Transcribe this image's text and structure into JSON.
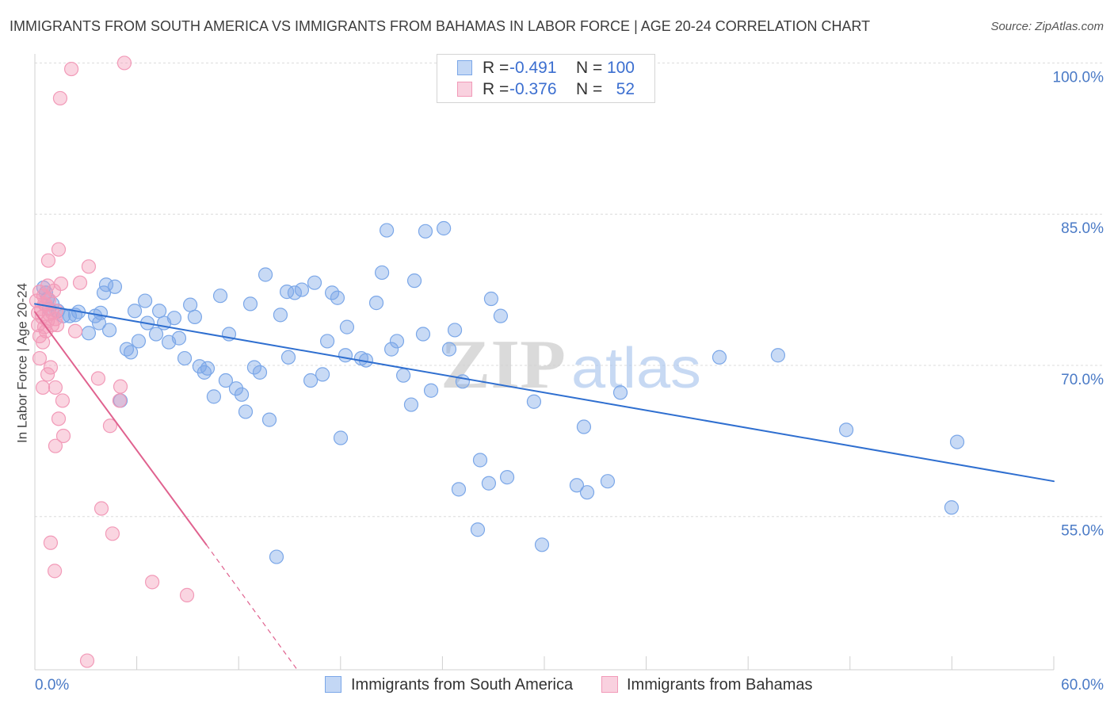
{
  "chart_data": {
    "type": "scatter",
    "title": "IMMIGRANTS FROM SOUTH AMERICA VS IMMIGRANTS FROM BAHAMAS IN LABOR FORCE | AGE 20-24 CORRELATION CHART",
    "source": "Source: ZipAtlas.com",
    "xlabel": "",
    "ylabel": "In Labor Force | Age 20-24",
    "xlim": [
      0,
      60
    ],
    "ylim": [
      39.8,
      100.9
    ],
    "grid": true,
    "x_ticks": [
      {
        "value": 0,
        "label": "0.0%"
      },
      {
        "value": 60,
        "label": "60.0%"
      }
    ],
    "x_tick_marks": [
      0,
      6,
      12,
      18,
      24,
      30,
      36,
      42,
      48,
      54,
      60
    ],
    "y_ticks": [
      {
        "value": 100,
        "label": "100.0%"
      },
      {
        "value": 85,
        "label": "85.0%"
      },
      {
        "value": 70,
        "label": "70.0%"
      },
      {
        "value": 55,
        "label": "55.0%"
      }
    ],
    "stats_legend": {
      "r_label": "R =",
      "n_label": "N ="
    },
    "series": [
      {
        "name": "Immigrants from South America",
        "r": "-0.491",
        "n": "100",
        "color": "#7ba7e8",
        "line_color": "#2f6fd0",
        "trend": {
          "start": [
            0,
            76.1
          ],
          "end": [
            60,
            58.5
          ]
        },
        "points": [
          [
            4.2,
            78.0
          ],
          [
            4.71,
            77.8
          ],
          [
            4.06,
            77.2
          ],
          [
            6.49,
            76.4
          ],
          [
            5.88,
            75.4
          ],
          [
            7.33,
            75.4
          ],
          [
            9.15,
            76.0
          ],
          [
            10.92,
            76.9
          ],
          [
            12.69,
            76.1
          ],
          [
            13.58,
            79.0
          ],
          [
            14.84,
            77.3
          ],
          [
            15.3,
            77.2
          ],
          [
            15.72,
            77.5
          ],
          [
            16.47,
            78.2
          ],
          [
            17.5,
            77.2
          ],
          [
            17.82,
            76.7
          ],
          [
            20.11,
            76.2
          ],
          [
            20.44,
            79.2
          ],
          [
            20.72,
            83.4
          ],
          [
            23.0,
            83.3
          ],
          [
            24.08,
            83.6
          ],
          [
            22.35,
            78.4
          ],
          [
            26.87,
            76.6
          ],
          [
            27.43,
            74.9
          ],
          [
            24.73,
            73.5
          ],
          [
            22.86,
            73.1
          ],
          [
            24.4,
            71.6
          ],
          [
            14.46,
            75.0
          ],
          [
            18.38,
            73.8
          ],
          [
            17.22,
            72.4
          ],
          [
            18.29,
            71.0
          ],
          [
            19.22,
            70.7
          ],
          [
            19.5,
            70.5
          ],
          [
            21.0,
            71.6
          ],
          [
            21.32,
            72.4
          ],
          [
            21.7,
            69.0
          ],
          [
            22.16,
            66.1
          ],
          [
            23.33,
            67.5
          ],
          [
            25.19,
            68.4
          ],
          [
            29.39,
            66.4
          ],
          [
            34.48,
            67.3
          ],
          [
            40.31,
            70.8
          ],
          [
            43.76,
            71.0
          ],
          [
            32.33,
            63.9
          ],
          [
            47.78,
            63.6
          ],
          [
            54.31,
            62.4
          ],
          [
            53.98,
            55.9
          ],
          [
            26.22,
            60.6
          ],
          [
            27.81,
            58.9
          ],
          [
            26.73,
            58.3
          ],
          [
            24.96,
            57.7
          ],
          [
            31.91,
            58.1
          ],
          [
            32.52,
            57.4
          ],
          [
            33.73,
            58.5
          ],
          [
            26.08,
            53.7
          ],
          [
            29.86,
            52.2
          ],
          [
            18.01,
            62.8
          ],
          [
            14.23,
            51.0
          ],
          [
            13.81,
            64.6
          ],
          [
            12.41,
            65.4
          ],
          [
            12.18,
            67.1
          ],
          [
            11.85,
            67.7
          ],
          [
            11.24,
            68.5
          ],
          [
            10.54,
            66.9
          ],
          [
            10.17,
            69.7
          ],
          [
            9.98,
            69.3
          ],
          [
            9.7,
            69.9
          ],
          [
            8.82,
            70.7
          ],
          [
            7.89,
            72.3
          ],
          [
            7.14,
            73.1
          ],
          [
            6.63,
            74.2
          ],
          [
            6.11,
            72.4
          ],
          [
            5.41,
            71.6
          ],
          [
            5.65,
            71.3
          ],
          [
            7.61,
            74.2
          ],
          [
            8.21,
            74.7
          ],
          [
            9.42,
            74.8
          ],
          [
            8.49,
            72.7
          ],
          [
            11.43,
            73.1
          ],
          [
            12.92,
            69.8
          ],
          [
            13.25,
            69.3
          ],
          [
            14.93,
            70.8
          ],
          [
            16.24,
            68.5
          ],
          [
            16.94,
            69.1
          ],
          [
            5.04,
            66.5
          ],
          [
            4.39,
            73.5
          ],
          [
            3.78,
            74.2
          ],
          [
            3.55,
            74.9
          ],
          [
            3.87,
            75.2
          ],
          [
            3.17,
            73.2
          ],
          [
            2.57,
            75.3
          ],
          [
            2.38,
            75.0
          ],
          [
            2.05,
            74.9
          ],
          [
            1.68,
            74.9
          ],
          [
            1.35,
            75.4
          ],
          [
            1.03,
            76.1
          ],
          [
            0.75,
            76.6
          ],
          [
            0.65,
            77.2
          ],
          [
            0.51,
            77.7
          ],
          [
            0.84,
            75.6
          ]
        ]
      },
      {
        "name": "Immigrants from Bahamas",
        "r": "-0.376",
        "n": "52",
        "color": "#f29ab8",
        "line_color": "#e0628f",
        "trend": {
          "start": [
            0,
            75.3
          ],
          "end": [
            10.1,
            52.2
          ],
          "dashed_end": [
            15.45,
            39.8
          ]
        },
        "points": [
          [
            5.27,
            100.0
          ],
          [
            2.15,
            99.4
          ],
          [
            1.49,
            96.5
          ],
          [
            1.4,
            81.5
          ],
          [
            0.79,
            80.4
          ],
          [
            3.17,
            79.8
          ],
          [
            1.54,
            78.1
          ],
          [
            2.66,
            78.2
          ],
          [
            1.12,
            77.4
          ],
          [
            0.28,
            77.3
          ],
          [
            0.51,
            76.9
          ],
          [
            0.84,
            76.5
          ],
          [
            0.65,
            76.0
          ],
          [
            0.37,
            75.6
          ],
          [
            0.19,
            75.2
          ],
          [
            0.42,
            74.8
          ],
          [
            0.75,
            74.4
          ],
          [
            1.03,
            74.0
          ],
          [
            1.21,
            74.6
          ],
          [
            1.31,
            74.0
          ],
          [
            0.56,
            73.8
          ],
          [
            0.65,
            73.4
          ],
          [
            2.38,
            73.4
          ],
          [
            0.28,
            72.9
          ],
          [
            0.28,
            70.7
          ],
          [
            0.93,
            69.8
          ],
          [
            0.75,
            69.1
          ],
          [
            3.73,
            68.7
          ],
          [
            5.04,
            67.9
          ],
          [
            1.21,
            67.8
          ],
          [
            0.47,
            67.8
          ],
          [
            4.99,
            66.5
          ],
          [
            1.63,
            66.5
          ],
          [
            1.4,
            64.7
          ],
          [
            4.43,
            64.0
          ],
          [
            1.68,
            63.0
          ],
          [
            1.21,
            62.0
          ],
          [
            3.92,
            55.8
          ],
          [
            4.57,
            53.3
          ],
          [
            0.93,
            52.4
          ],
          [
            1.17,
            49.6
          ],
          [
            6.91,
            48.5
          ],
          [
            8.96,
            47.2
          ],
          [
            3.08,
            40.7
          ],
          [
            1.03,
            75.2
          ],
          [
            0.56,
            76.1
          ],
          [
            0.09,
            76.4
          ],
          [
            0.75,
            77.9
          ],
          [
            1.26,
            75.4
          ],
          [
            0.19,
            74.0
          ],
          [
            0.84,
            75.1
          ],
          [
            0.47,
            72.3
          ]
        ]
      }
    ]
  },
  "watermark": {
    "zip": "ZIP",
    "atlas": "atlas"
  }
}
